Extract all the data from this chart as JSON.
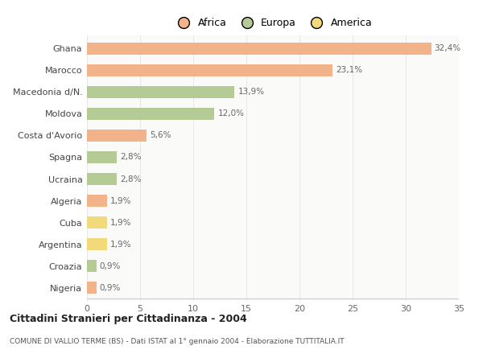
{
  "countries": [
    "Ghana",
    "Marocco",
    "Macedonia d/N.",
    "Moldova",
    "Costa d'Avorio",
    "Spagna",
    "Ucraina",
    "Algeria",
    "Cuba",
    "Argentina",
    "Croazia",
    "Nigeria"
  ],
  "values": [
    32.4,
    23.1,
    13.9,
    12.0,
    5.6,
    2.8,
    2.8,
    1.9,
    1.9,
    1.9,
    0.9,
    0.9
  ],
  "labels": [
    "32,4%",
    "23,1%",
    "13,9%",
    "12,0%",
    "5,6%",
    "2,8%",
    "2,8%",
    "1,9%",
    "1,9%",
    "1,9%",
    "0,9%",
    "0,9%"
  ],
  "colors": [
    "#F2B28A",
    "#F2B28A",
    "#B5CB96",
    "#B5CB96",
    "#F2B28A",
    "#B5CB96",
    "#B5CB96",
    "#F2B28A",
    "#F2D97A",
    "#F2D97A",
    "#B5CB96",
    "#F2B28A"
  ],
  "legend_labels": [
    "Africa",
    "Europa",
    "America"
  ],
  "legend_colors": [
    "#F2B28A",
    "#B5CB96",
    "#F2D97A"
  ],
  "title": "Cittadini Stranieri per Cittadinanza - 2004",
  "subtitle": "COMUNE DI VALLIO TERME (BS) - Dati ISTAT al 1° gennaio 2004 - Elaborazione TUTTITALIA.IT",
  "xlim": [
    0,
    35
  ],
  "xticks": [
    0,
    5,
    10,
    15,
    20,
    25,
    30,
    35
  ],
  "bg_color": "#FFFFFF",
  "plot_bg_color": "#FAFAF8",
  "grid_color": "#E8E8E8",
  "bar_height": 0.55
}
